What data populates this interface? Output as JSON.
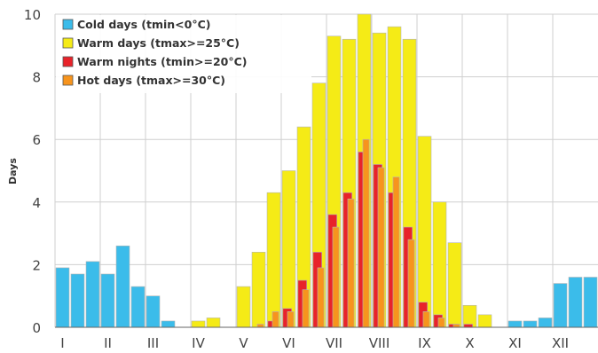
{
  "chart_data": {
    "type": "bar",
    "ylabel": "Days",
    "ylim": [
      0,
      10
    ],
    "yticks": [
      0,
      2,
      4,
      6,
      8,
      10
    ],
    "month_labels": [
      "I",
      "II",
      "III",
      "IV",
      "V",
      "VI",
      "VII",
      "VIII",
      "IX",
      "X",
      "XI",
      "XII"
    ],
    "periods_per_month": 3,
    "grid": true,
    "legend_position": "top-left",
    "series": [
      {
        "name": "Cold days (tmin<0°C)",
        "color": "#3bbcea",
        "values": [
          1.9,
          1.7,
          2.1,
          1.7,
          2.6,
          1.3,
          1.0,
          0.2,
          0,
          0,
          0,
          0,
          0,
          0,
          0,
          0,
          0,
          0,
          0,
          0,
          0,
          0,
          0,
          0,
          0,
          0,
          0,
          0,
          0,
          0,
          0.2,
          0.2,
          0.3,
          1.4,
          1.6,
          1.6
        ]
      },
      {
        "name": "Warm days (tmax>=25°C)",
        "color": "#f5eb16",
        "values": [
          0,
          0,
          0,
          0,
          0,
          0,
          0,
          0,
          0,
          0.2,
          0.3,
          0,
          1.3,
          2.4,
          4.3,
          5.0,
          6.4,
          7.8,
          9.3,
          9.2,
          10.0,
          9.4,
          9.6,
          9.2,
          6.1,
          4.0,
          2.7,
          0.7,
          0.4,
          0,
          0,
          0,
          0,
          0,
          0,
          0
        ]
      },
      {
        "name": "Warm nights (tmin>=20°C)",
        "color": "#e8232a",
        "values": [
          0,
          0,
          0,
          0,
          0,
          0,
          0,
          0,
          0,
          0,
          0,
          0,
          0,
          0,
          0.2,
          0.6,
          1.5,
          2.4,
          3.6,
          4.3,
          5.6,
          5.2,
          4.3,
          3.2,
          0.8,
          0.4,
          0.1,
          0.1,
          0,
          0,
          0,
          0,
          0,
          0,
          0,
          0
        ]
      },
      {
        "name": "Hot days (tmax>=30°C)",
        "color": "#f7941d",
        "values": [
          0,
          0,
          0,
          0,
          0,
          0,
          0,
          0,
          0,
          0,
          0,
          0,
          0,
          0.1,
          0.5,
          0.5,
          1.2,
          1.9,
          3.2,
          4.1,
          6.0,
          5.1,
          4.8,
          2.8,
          0.5,
          0.3,
          0.1,
          0,
          0,
          0,
          0,
          0,
          0,
          0,
          0,
          0
        ]
      }
    ]
  }
}
